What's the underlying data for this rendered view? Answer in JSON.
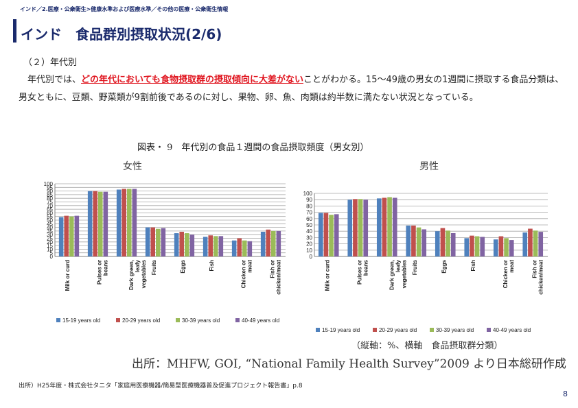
{
  "breadcrumb": "インド／2.医療・公衆衛生>健康水準および医療水準／その他の医療・公衆衛生情報",
  "title": "インド　食品群別摂取状況(2/6)",
  "section_heading": "（２）年代別",
  "body": {
    "pre": "年代別では、",
    "highlight": "どの年代においても食物摂取群の摂取傾向に大差がない",
    "post": "ことがわかる。15～49歳の男女の1週間に摂取する食品分類は、男女ともに、豆類、野菜類が9割前後であるのに対し、果物、卵、魚、肉類は約半数に満たない状況となっている。"
  },
  "figure_title": "図表・ 9　年代別の食品１週間の食品摂取頻度（男女別）",
  "units_note": "（縦軸：%、横軸　食品摂取群分類）",
  "chart_source": "出所：MHFW, GOI, “National Family Health Survey”2009 より日本総研作成",
  "footnote": "出所）H25年度・株式会社タニタ「家庭用医療機器/簡易型医療機器普及促進プロジェクト報告書」p.8",
  "page_number": "8",
  "colors": {
    "series": [
      "#4f81bd",
      "#c0504d",
      "#9bbb59",
      "#8064a2"
    ],
    "brand": "#1a2a6c",
    "highlight": "#e0141e"
  },
  "chart_data": [
    {
      "type": "bar",
      "title": "女性",
      "categories": [
        "Milk or curd",
        "Pulses or beans",
        "Dark green, leafy vegetables",
        "Fruits",
        "Eggs",
        "Fish",
        "Chicken or meat",
        "Fish or chicken/meat"
      ],
      "series": [
        {
          "name": "15-19 years old",
          "values": [
            54,
            90,
            92,
            40,
            32,
            27,
            22,
            34
          ]
        },
        {
          "name": "20-29 years old",
          "values": [
            56,
            90,
            93,
            40,
            34,
            29,
            25,
            37
          ]
        },
        {
          "name": "30-39 years old",
          "values": [
            55,
            89,
            93,
            38,
            32,
            28,
            22,
            35
          ]
        },
        {
          "name": "40-49 years old",
          "values": [
            56,
            89,
            93,
            39,
            30,
            28,
            21,
            35
          ]
        }
      ],
      "ylim": [
        0,
        100
      ],
      "yticks": [
        0,
        5,
        10,
        15,
        20,
        25,
        30,
        35,
        40,
        45,
        50,
        55,
        60,
        65,
        70,
        75,
        80,
        85,
        90,
        95,
        100
      ],
      "grid": true,
      "legend": "bottom"
    },
    {
      "type": "bar",
      "title": "男性",
      "categories": [
        "Milk or curd",
        "Pulses or beans",
        "Dark green, leafy vegetables",
        "Fruits",
        "Eggs",
        "Fish",
        "Chicken or meat",
        "Fish or chicken/meat"
      ],
      "series": [
        {
          "name": "15-19  years old",
          "values": [
            69,
            90,
            92,
            49,
            40,
            29,
            27,
            38
          ]
        },
        {
          "name": "20-29  years old",
          "values": [
            69,
            91,
            93,
            49,
            45,
            33,
            32,
            44
          ]
        },
        {
          "name": "30-39  years old",
          "values": [
            66,
            91,
            94,
            46,
            41,
            32,
            29,
            41
          ]
        },
        {
          "name": "40-49  years old",
          "values": [
            67,
            90,
            93,
            43,
            37,
            31,
            26,
            39
          ]
        }
      ],
      "ylim": [
        0,
        100
      ],
      "yticks": [
        0,
        10,
        20,
        30,
        40,
        50,
        60,
        70,
        80,
        90,
        100
      ],
      "grid": true,
      "legend": "bottom"
    }
  ]
}
